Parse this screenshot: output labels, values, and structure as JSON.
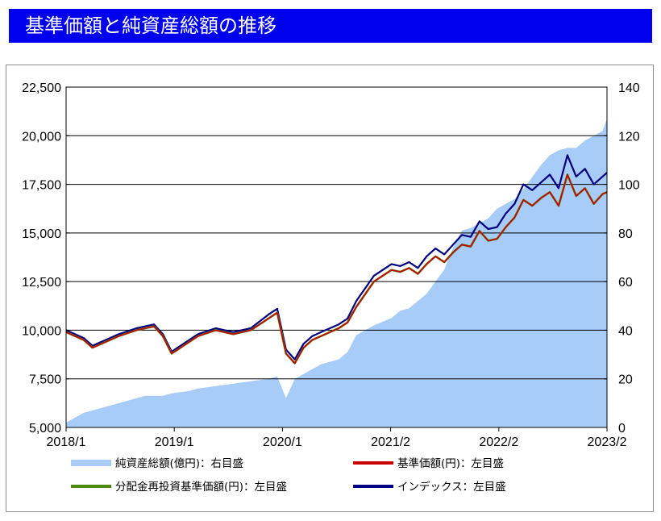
{
  "title": "基準価額と純資産総額の推移",
  "chart_data": {
    "type": "line",
    "title": "",
    "x_tick_labels": [
      "2018/1",
      "2019/1",
      "2020/1",
      "2021/2",
      "2022/2",
      "2023/2"
    ],
    "y_left": {
      "min": 5000,
      "max": 22500,
      "ticks": [
        "5,000",
        "7,500",
        "10,000",
        "12,500",
        "15,000",
        "17,500",
        "20,000",
        "22,500"
      ]
    },
    "y_right": {
      "min": 0,
      "max": 140,
      "ticks": [
        "0",
        "20",
        "40",
        "60",
        "80",
        "100",
        "120",
        "140"
      ]
    },
    "grid": "horizontal",
    "legend_position": "bottom",
    "x_months": [
      0,
      2,
      3,
      4,
      6,
      8,
      9,
      10,
      11,
      12,
      14,
      15,
      17,
      19,
      21,
      23,
      24,
      25,
      26,
      27,
      28,
      29,
      30,
      31,
      32,
      33,
      35,
      37,
      38,
      39,
      40,
      41,
      42,
      43,
      44,
      45,
      46,
      47,
      48,
      49,
      50,
      51,
      52,
      53,
      54,
      55,
      56,
      57,
      58,
      59,
      60,
      61,
      61.5
    ],
    "series": [
      {
        "name": "純資産総額(億円)：右目盛",
        "axis": "right",
        "kind": "area",
        "color": "#a8ccf8",
        "values": [
          2,
          6,
          7,
          8,
          10,
          12,
          13,
          13,
          13,
          14,
          15,
          16,
          17,
          18,
          19,
          20,
          21,
          12,
          20,
          22,
          24,
          26,
          27,
          28,
          31,
          38,
          42,
          45,
          48,
          49,
          52,
          55,
          60,
          65,
          74,
          81,
          82,
          84,
          86,
          90,
          92,
          94,
          98,
          103,
          108,
          112,
          114,
          115,
          115,
          118,
          120,
          122,
          127
        ]
      },
      {
        "name": "基準価額(円)：左目盛",
        "axis": "left",
        "kind": "line",
        "color": "#cc0000",
        "values": [
          9900,
          9500,
          9100,
          9300,
          9700,
          10000,
          10100,
          10200,
          9700,
          8800,
          9400,
          9700,
          10000,
          9800,
          10000,
          10600,
          10900,
          8800,
          8300,
          9100,
          9500,
          9700,
          9900,
          10100,
          10400,
          11200,
          12500,
          13100,
          13000,
          13200,
          12900,
          13400,
          13800,
          13500,
          14000,
          14400,
          14300,
          15100,
          14600,
          14700,
          15300,
          15800,
          16700,
          16400,
          16800,
          17100,
          16400,
          18000,
          16900,
          17300,
          16500,
          17000,
          17100
        ]
      },
      {
        "name": "分配金再投資基準価額(円)：左目盛",
        "axis": "left",
        "kind": "line",
        "color": "#4f8a10",
        "values": [
          9900,
          9500,
          9100,
          9300,
          9700,
          10000,
          10100,
          10200,
          9700,
          8800,
          9400,
          9700,
          10000,
          9800,
          10000,
          10600,
          10900,
          8800,
          8300,
          9100,
          9500,
          9700,
          9900,
          10100,
          10400,
          11200,
          12500,
          13100,
          13000,
          13200,
          12900,
          13400,
          13800,
          13500,
          14000,
          14400,
          14300,
          15100,
          14600,
          14700,
          15300,
          15800,
          16700,
          16400,
          16800,
          17100,
          16400,
          18000,
          16900,
          17300,
          16500,
          17000,
          17100
        ]
      },
      {
        "name": "インデックス：左目盛",
        "axis": "left",
        "kind": "line",
        "color": "#000080",
        "values": [
          10000,
          9600,
          9200,
          9400,
          9800,
          10100,
          10200,
          10300,
          9800,
          8900,
          9500,
          9800,
          10100,
          9900,
          10100,
          10800,
          11100,
          9000,
          8500,
          9300,
          9700,
          9900,
          10100,
          10300,
          10600,
          11500,
          12800,
          13400,
          13300,
          13500,
          13200,
          13800,
          14200,
          13900,
          14400,
          14900,
          14800,
          15600,
          15200,
          15300,
          16000,
          16500,
          17500,
          17200,
          17600,
          18000,
          17300,
          19000,
          17900,
          18300,
          17500,
          17900,
          18100
        ]
      }
    ]
  }
}
